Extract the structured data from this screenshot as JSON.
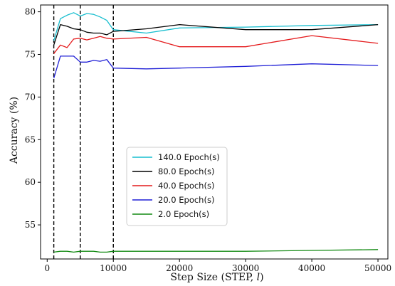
{
  "chart_data": {
    "type": "line",
    "xlabel": "Step Size (STEP, ",
    "xlabel_var": "l",
    "xlabel_close": ")",
    "ylabel": "Accuracy (%)",
    "xlim": [
      -1000,
      51500
    ],
    "ylim": [
      51,
      80.8
    ],
    "x_ticks": [
      0,
      10000,
      20000,
      30000,
      40000,
      50000
    ],
    "y_ticks": [
      55,
      60,
      65,
      70,
      75,
      80
    ],
    "grid": false,
    "legend_position": "lower-center",
    "vlines": [
      1000,
      5000,
      10000
    ],
    "series": [
      {
        "name": "140.0 Epoch(s)",
        "color": "#17becf",
        "x": [
          1000,
          2000,
          3000,
          4000,
          5000,
          6000,
          7000,
          8000,
          9000,
          10000,
          15000,
          20000,
          30000,
          40000,
          50000
        ],
        "y": [
          76.6,
          79.2,
          79.6,
          79.9,
          79.5,
          79.8,
          79.7,
          79.4,
          79.0,
          77.9,
          77.5,
          78.1,
          78.2,
          78.4,
          78.5
        ]
      },
      {
        "name": "80.0 Epoch(s)",
        "color": "#000000",
        "x": [
          1000,
          2000,
          3000,
          4000,
          5000,
          6000,
          7000,
          8000,
          9000,
          10000,
          15000,
          20000,
          30000,
          40000,
          50000
        ],
        "y": [
          76.1,
          78.5,
          78.3,
          78.0,
          77.9,
          77.6,
          77.5,
          77.5,
          77.3,
          77.7,
          78.0,
          78.5,
          77.9,
          77.9,
          78.5
        ]
      },
      {
        "name": "40.0 Epoch(s)",
        "color": "#e41a1c",
        "x": [
          1000,
          2000,
          3000,
          4000,
          5000,
          6000,
          7000,
          8000,
          9000,
          10000,
          15000,
          20000,
          30000,
          40000,
          50000
        ],
        "y": [
          75.1,
          76.1,
          75.8,
          76.8,
          76.9,
          76.7,
          76.9,
          77.1,
          76.9,
          76.8,
          77.0,
          75.9,
          75.9,
          77.2,
          76.3
        ]
      },
      {
        "name": "20.0 Epoch(s)",
        "color": "#1f1fd6",
        "x": [
          1000,
          2000,
          3000,
          4000,
          5000,
          6000,
          7000,
          8000,
          9000,
          10000,
          15000,
          20000,
          30000,
          40000,
          50000
        ],
        "y": [
          72.2,
          74.8,
          74.8,
          74.8,
          74.1,
          74.1,
          74.3,
          74.2,
          74.4,
          73.4,
          73.3,
          73.4,
          73.6,
          73.9,
          73.7
        ]
      },
      {
        "name": "2.0 Epoch(s)",
        "color": "#138a13",
        "x": [
          1000,
          2000,
          3000,
          4000,
          5000,
          6000,
          7000,
          8000,
          9000,
          10000,
          15000,
          20000,
          30000,
          40000,
          50000
        ],
        "y": [
          51.8,
          51.9,
          51.9,
          51.8,
          51.9,
          51.9,
          51.9,
          51.8,
          51.8,
          51.9,
          51.9,
          51.9,
          51.9,
          52.0,
          52.1
        ]
      }
    ]
  }
}
